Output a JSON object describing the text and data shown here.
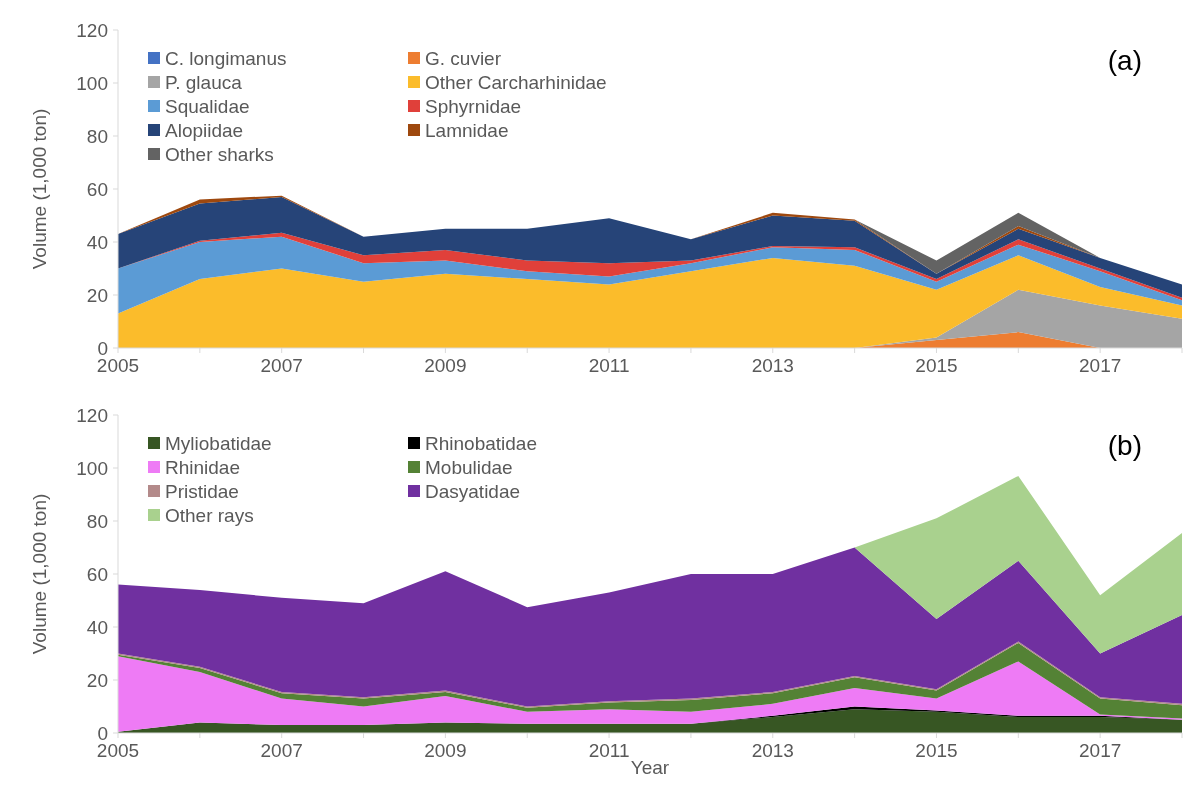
{
  "chart_data": [
    {
      "type": "area",
      "title": "(a)",
      "ylabel": "Volume (1,000 ton)",
      "stacked": true,
      "legend": "top left",
      "grid": false,
      "x": [
        2005,
        2006,
        2007,
        2008,
        2009,
        2010,
        2011,
        2012,
        2013,
        2014,
        2015,
        2016,
        2017,
        2018
      ],
      "xlim": [
        2005,
        2018
      ],
      "xticks": [
        2005,
        {
          "value": 2006,
          "label": null
        },
        2007,
        {
          "value": 2008,
          "label": null
        },
        2009,
        {
          "value": 2010,
          "label": null
        },
        2011,
        {
          "value": 2012,
          "label": null
        },
        2013,
        {
          "value": 2014,
          "label": null
        },
        2015,
        {
          "value": 2016,
          "label": null
        },
        2017,
        {
          "value": 2018,
          "label": null
        }
      ],
      "ylim": [
        0,
        120
      ],
      "yticks": [
        0,
        20,
        40,
        60,
        80,
        100,
        120
      ],
      "series": [
        {
          "name": "C. longimanus",
          "color": "#4472c4",
          "values": [
            null,
            null,
            null,
            null,
            null,
            null,
            null,
            null,
            null,
            null,
            null,
            null,
            null,
            null
          ]
        },
        {
          "name": "G. cuvier",
          "color": "#ed7d31",
          "values": [
            0,
            0,
            0,
            0,
            0,
            0,
            0,
            0,
            0,
            0,
            3,
            6,
            0,
            0
          ]
        },
        {
          "name": "P. glauca",
          "color": "#a5a5a5",
          "values": [
            0,
            0,
            0,
            0,
            0,
            0,
            0,
            0,
            0,
            0,
            1,
            16,
            16,
            11
          ]
        },
        {
          "name": "Other Carcharhinidae",
          "color": "#fbbc2b",
          "values": [
            13,
            26,
            30,
            25,
            28,
            26,
            24,
            29,
            34,
            31,
            18,
            13,
            7,
            5
          ]
        },
        {
          "name": "Squalidae",
          "color": "#5b9bd5",
          "values": [
            17,
            14,
            12,
            7,
            5,
            3,
            3,
            3,
            4,
            6,
            3,
            4,
            6,
            2
          ]
        },
        {
          "name": "Sphyrnidae",
          "color": "#e0403a",
          "values": [
            0,
            0.5,
            1.5,
            3,
            4,
            4,
            5,
            1,
            0.5,
            1,
            1,
            2,
            1,
            1
          ]
        },
        {
          "name": "Alopiidae",
          "color": "#264478",
          "values": [
            13,
            14,
            13.5,
            7,
            8,
            12,
            17,
            8,
            11.5,
            10,
            2,
            4,
            4,
            5
          ]
        },
        {
          "name": "Lamnidae",
          "color": "#9e480e",
          "values": [
            0,
            1.5,
            0.5,
            0,
            null,
            null,
            null,
            0,
            1,
            0.5,
            0,
            1,
            0,
            null
          ]
        },
        {
          "name": "Other sharks",
          "color": "#636363",
          "values": [
            null,
            null,
            null,
            null,
            null,
            null,
            null,
            null,
            null,
            0,
            5,
            5,
            0,
            null
          ]
        }
      ]
    },
    {
      "type": "area",
      "title": "(b)",
      "xlabel": "Year",
      "ylabel": "Volume (1,000 ton)",
      "stacked": true,
      "legend": "top left",
      "grid": false,
      "x": [
        2005,
        2006,
        2007,
        2008,
        2009,
        2010,
        2011,
        2012,
        2013,
        2014,
        2015,
        2016,
        2017,
        2018
      ],
      "xlim": [
        2005,
        2018
      ],
      "xticks": [
        2005,
        {
          "value": 2006,
          "label": null
        },
        2007,
        {
          "value": 2008,
          "label": null
        },
        2009,
        {
          "value": 2010,
          "label": null
        },
        2011,
        {
          "value": 2012,
          "label": null
        },
        2013,
        {
          "value": 2014,
          "label": null
        },
        2015,
        {
          "value": 2016,
          "label": null
        },
        2017,
        {
          "value": 2018,
          "label": null
        }
      ],
      "ylim": [
        0,
        120
      ],
      "yticks": [
        0,
        20,
        40,
        60,
        80,
        100,
        120
      ],
      "series": [
        {
          "name": "Myliobatidae",
          "color": "#375623",
          "values": [
            0.5,
            4,
            3,
            3,
            4,
            3.5,
            3.5,
            3.5,
            6,
            9,
            8,
            6,
            6,
            5
          ]
        },
        {
          "name": "Rhinobatidae",
          "color": "#000000",
          "values": [
            0,
            0,
            0,
            0,
            0,
            0,
            0,
            0,
            0.5,
            1,
            0.5,
            0.5,
            0.5,
            0
          ]
        },
        {
          "name": "Rhinidae",
          "color": "#ee7bf5",
          "values": [
            28.5,
            19,
            10,
            7,
            10,
            4.5,
            5.5,
            4.5,
            4.5,
            7,
            4.5,
            20.5,
            0.5,
            0.5
          ]
        },
        {
          "name": "Mobulidae",
          "color": "#548235",
          "values": [
            0.5,
            1.5,
            2,
            3,
            1.5,
            1.5,
            2.5,
            4.5,
            4,
            4,
            3,
            7,
            6,
            5
          ]
        },
        {
          "name": "Pristidae",
          "color": "#b38a8a",
          "values": [
            0.5,
            0.5,
            0.5,
            0.5,
            0.5,
            0.5,
            0.5,
            0.5,
            0.5,
            0.5,
            0.5,
            0.5,
            0.5,
            0.5
          ]
        },
        {
          "name": "Dasyatidae",
          "color": "#7030a0",
          "values": [
            26,
            29,
            35.5,
            35.5,
            45,
            37.5,
            41,
            47,
            44.5,
            48.5,
            26.5,
            30.5,
            16.5,
            33.5
          ]
        },
        {
          "name": "Other rays",
          "color": "#a9d18e",
          "values": [
            0,
            0,
            0,
            0,
            0,
            0,
            0,
            0,
            0,
            0,
            38,
            32,
            22,
            31
          ]
        }
      ]
    }
  ]
}
